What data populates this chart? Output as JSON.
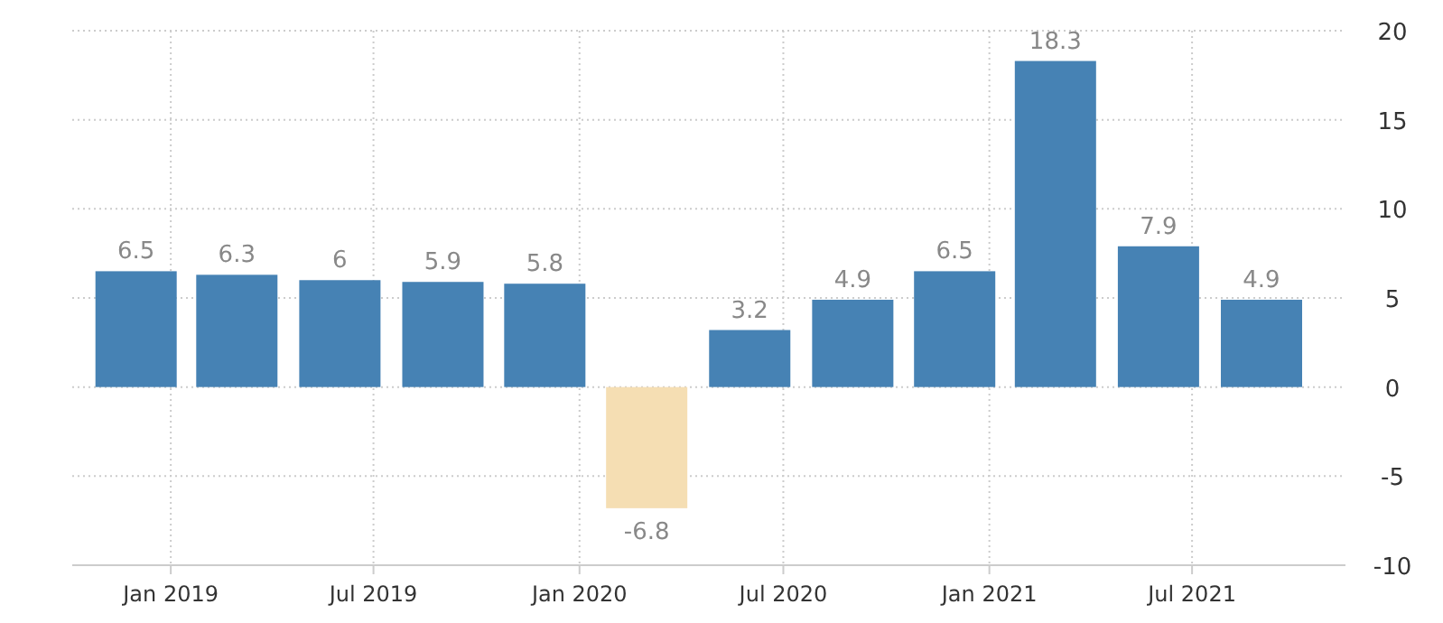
{
  "chart_data": {
    "type": "bar",
    "x": [
      "2018-12",
      "2019-03",
      "2019-06",
      "2019-09",
      "2019-12",
      "2020-03",
      "2020-06",
      "2020-09",
      "2020-12",
      "2021-03",
      "2021-06",
      "2021-09"
    ],
    "values": [
      6.5,
      6.3,
      6,
      5.9,
      5.8,
      -6.8,
      3.2,
      4.9,
      6.5,
      18.3,
      7.9,
      4.9
    ],
    "colors": [
      "#4682b4",
      "#4682b4",
      "#4682b4",
      "#4682b4",
      "#4682b4",
      "#f5deb3",
      "#4682b4",
      "#4682b4",
      "#4682b4",
      "#4682b4",
      "#4682b4",
      "#4682b4"
    ],
    "data_labels": true,
    "xlim": [
      "2018-10-05",
      "2021-11-15"
    ],
    "xticks": [
      {
        "value": "2019-01",
        "label": "Jan 2019"
      },
      {
        "value": "2019-07",
        "label": "Jul 2019"
      },
      {
        "value": "2020-01",
        "label": "Jan 2020"
      },
      {
        "value": "2020-07",
        "label": "Jul 2020"
      },
      {
        "value": "2021-01",
        "label": "Jan 2021"
      },
      {
        "value": "2021-07",
        "label": "Jul 2021"
      }
    ],
    "ylim": [
      -10,
      20
    ],
    "yticks": [
      -10,
      -5,
      0,
      5,
      10,
      15,
      20
    ],
    "grid": true
  }
}
